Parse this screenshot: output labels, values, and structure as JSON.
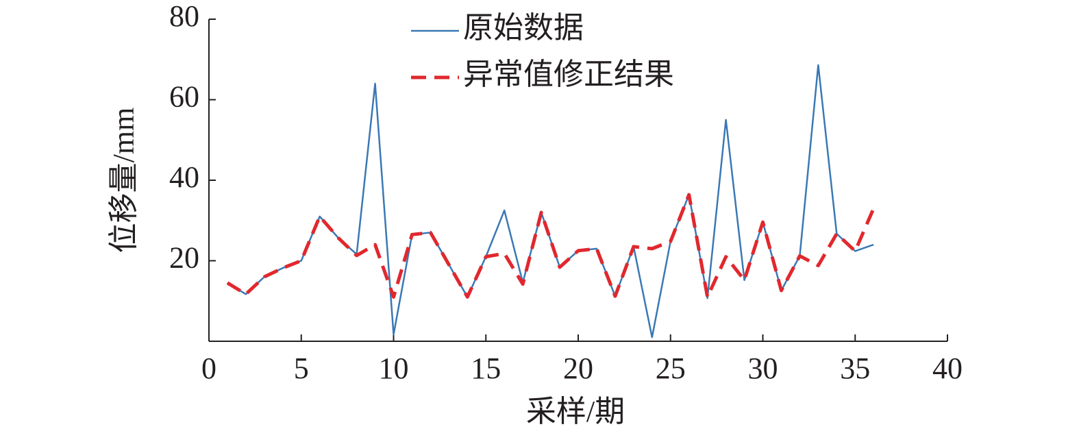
{
  "chart_data": {
    "type": "line",
    "x_label": "采样/期",
    "y_label": "位移量/mm",
    "x": [
      1,
      2,
      3,
      4,
      5,
      6,
      7,
      8,
      9,
      10,
      11,
      12,
      13,
      14,
      15,
      16,
      17,
      18,
      19,
      20,
      21,
      22,
      23,
      24,
      25,
      26,
      27,
      28,
      29,
      30,
      31,
      32,
      33,
      34,
      35,
      36
    ],
    "series": [
      {
        "name": "原始数据",
        "color": "#3a78b4",
        "dash": false,
        "values": [
          14.5,
          11.7,
          16,
          18.2,
          20,
          31,
          25.7,
          21.6,
          64,
          1.7,
          26.5,
          27,
          19,
          11,
          21,
          32.5,
          14.6,
          32,
          18.4,
          22.5,
          23,
          11.2,
          23.5,
          1,
          24.8,
          36.4,
          10.7,
          55,
          15.2,
          29.6,
          12.6,
          21.2,
          68.6,
          26.7,
          22.4,
          24
        ]
      },
      {
        "name": "异常值修正结果",
        "color": "#e0282e",
        "dash": true,
        "values": [
          14.5,
          11.7,
          16,
          18.2,
          20,
          31,
          25.7,
          21.3,
          24,
          11,
          26.5,
          27,
          19,
          11,
          21,
          21.8,
          14.2,
          32,
          18.4,
          22.5,
          23,
          11.2,
          23.5,
          23,
          24.8,
          36.4,
          11,
          21,
          15.2,
          29.6,
          12.6,
          21.2,
          18.8,
          26.7,
          22.4,
          33
        ]
      }
    ],
    "xlim": [
      0,
      40
    ],
    "xticks": [
      0,
      5,
      10,
      15,
      20,
      25,
      30,
      35,
      40
    ],
    "ylim": [
      0,
      80
    ],
    "yticks": [
      20,
      40,
      60,
      80
    ],
    "legend": "top"
  }
}
